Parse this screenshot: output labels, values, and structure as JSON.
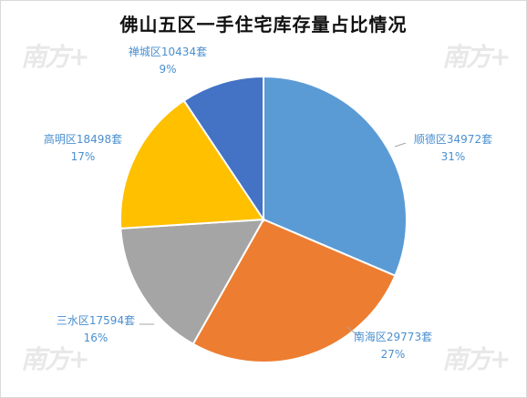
{
  "chart_data": {
    "type": "pie",
    "title": "佛山五区一手住宅库存量占比情况",
    "slices": [
      {
        "name": "顺德区",
        "value": 34972,
        "unit": "套",
        "percent": "31%",
        "color": "#5b9bd5"
      },
      {
        "name": "南海区",
        "value": 29773,
        "unit": "套",
        "percent": "27%",
        "color": "#ed7d31"
      },
      {
        "name": "三水区",
        "value": 17594,
        "unit": "套",
        "percent": "16%",
        "color": "#a5a5a5"
      },
      {
        "name": "高明区",
        "value": 18498,
        "unit": "套",
        "percent": "17%",
        "color": "#ffc000"
      },
      {
        "name": "禅城区",
        "value": 10434,
        "unit": "套",
        "percent": "9%",
        "color": "#4472c4"
      }
    ],
    "label_color": "#4a8fd0",
    "legend": "none"
  },
  "watermark": "南方+"
}
